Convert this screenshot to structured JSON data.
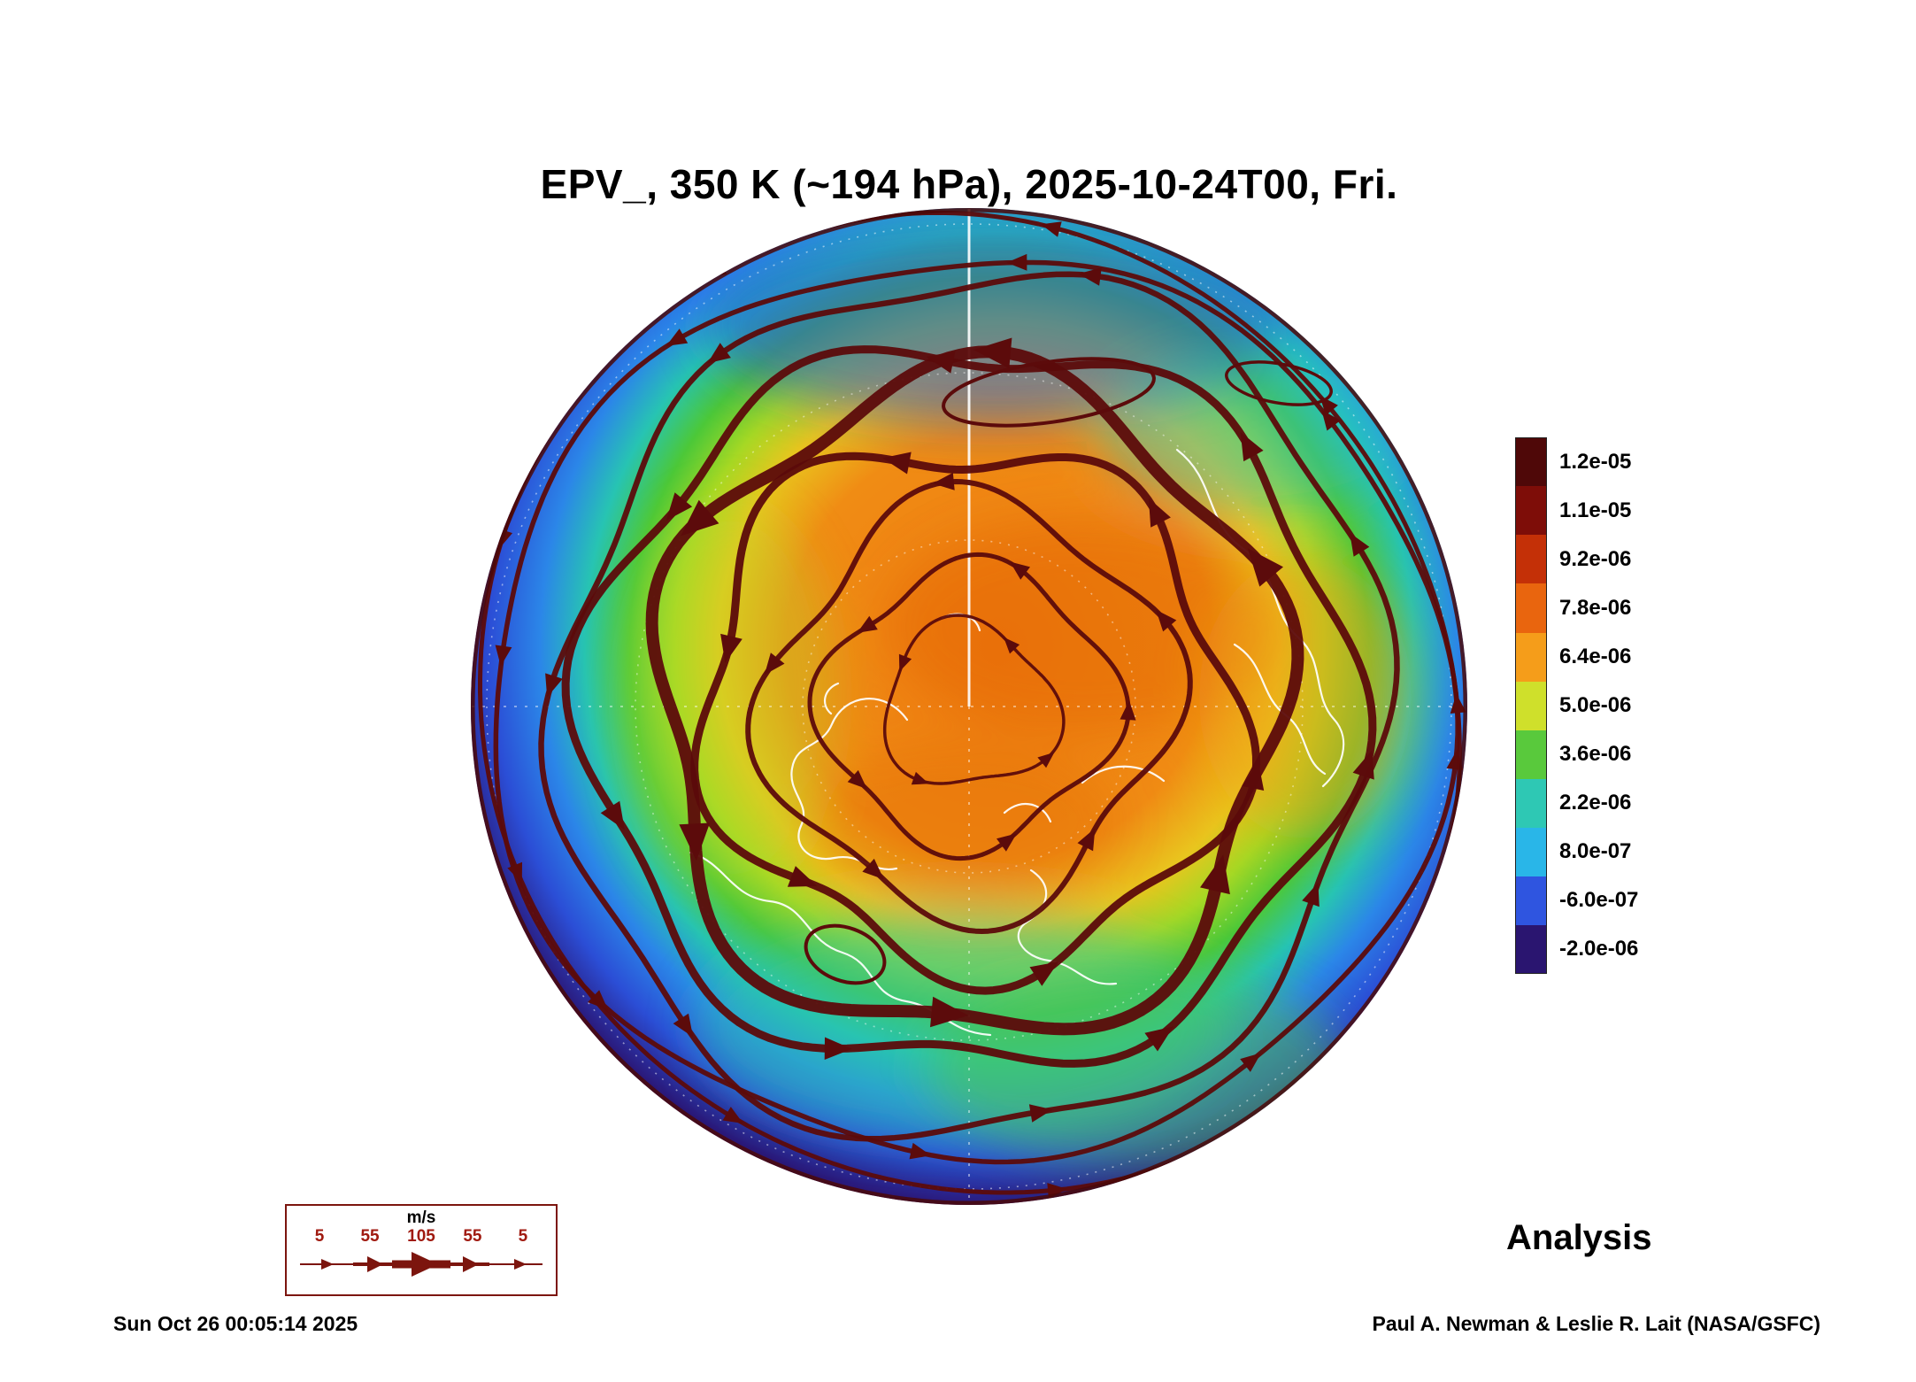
{
  "figure": {
    "title": "EPV_, 350 K (~194 hPa), 2025-10-24T00, Fri.",
    "analysis_label": "Analysis",
    "timestamp": "Sun Oct 26 00:05:14 2025",
    "credit": "Paul A. Newman & Leslie R. Lait (NASA/GSFC)"
  },
  "colorbar": {
    "ticks": [
      "1.2e-05",
      "1.1e-05",
      "9.2e-06",
      "7.8e-06",
      "6.4e-06",
      "5.0e-06",
      "3.6e-06",
      "2.2e-06",
      "8.0e-07",
      "-6.0e-07",
      "-2.0e-06"
    ],
    "colors": [
      "#4f0808",
      "#7e0d08",
      "#c43007",
      "#e9650e",
      "#f59d1a",
      "#cfe02b",
      "#59c93c",
      "#2ec8b4",
      "#29b6e8",
      "#2f55e0",
      "#2a1570"
    ]
  },
  "wind_legend": {
    "units": "m/s",
    "ticks": [
      "5",
      "55",
      "105",
      "55",
      "5"
    ]
  },
  "map": {
    "streamline_color": "#5c0b0b",
    "coastline_color": "#ffffff",
    "graticule_color": "#ffffff"
  },
  "chart_data": {
    "type": "heatmap",
    "title": "EPV_, 350 K (~194 hPa), 2025-10-24T00, Fri.",
    "field": "EPV_",
    "level": "350 K (~194 hPa)",
    "valid_time": "2025-10-24T00",
    "weekday": "Fri.",
    "projection": "north polar stereographic",
    "colorbar_levels": [
      1.2e-05,
      1.1e-05,
      9.2e-06,
      7.8e-06,
      6.4e-06,
      5e-06,
      3.6e-06,
      2.2e-06,
      8e-07,
      -6e-07,
      -2e-06
    ],
    "colorbar_colors": [
      "#4f0808",
      "#7e0d08",
      "#c43007",
      "#e9650e",
      "#f59d1a",
      "#cfe02b",
      "#59c93c",
      "#2ec8b4",
      "#29b6e8",
      "#2f55e0",
      "#2a1570"
    ],
    "wind_speed_legend_ms": [
      5,
      55,
      105,
      55,
      5
    ],
    "data_source_label": "Analysis",
    "legend_position": "right",
    "overlays": [
      "wind streamlines with arrowheads",
      "coastlines",
      "latitude-longitude graticule"
    ],
    "structure_notes": "High EPV (orange/red) polar vortex region over the pole bounded by a dark thick jet streamline band; low EPV (blue/purple) around the outer mid-latitude rim; green/cyan transition ring"
  }
}
